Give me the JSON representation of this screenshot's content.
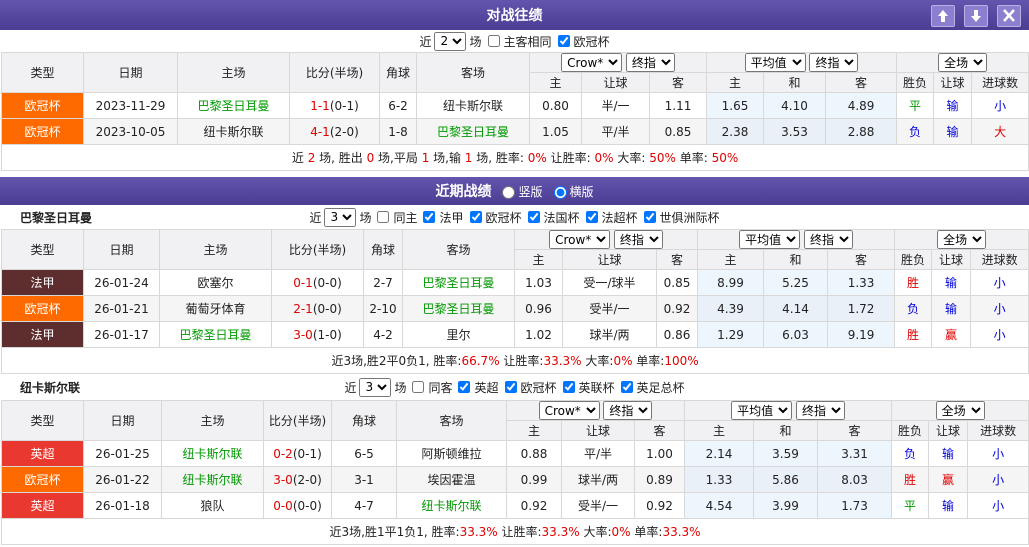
{
  "h2h": {
    "title": "对战往绩",
    "filter": {
      "prefix": "近",
      "count": "2",
      "suffix": "场",
      "options": [
        "主客相同",
        "欧冠杯"
      ]
    },
    "columns": [
      "类型",
      "日期",
      "主场",
      "比分(半场)",
      "角球",
      "客场"
    ],
    "selects": [
      "Crow*",
      "终指",
      "平均值",
      "终指",
      "全场"
    ],
    "subcolumns": [
      "主",
      "让球",
      "客",
      "主",
      "和",
      "客",
      "胜负",
      "让球",
      "进球数"
    ],
    "rows": [
      {
        "type": "欧冠杯",
        "date": "2023-11-29",
        "home": "巴黎圣日耳曼",
        "score": "1-1",
        "half": "(0-1)",
        "corner": "6-2",
        "away": "纽卡斯尔联",
        "odds": [
          "0.80",
          "半/一",
          "1.11"
        ],
        "euro": [
          "1.65",
          "4.10",
          "4.89"
        ],
        "result": "平",
        "handicap": "输",
        "goals": "小"
      },
      {
        "type": "欧冠杯",
        "date": "2023-10-05",
        "home": "纽卡斯尔联",
        "score": "4-1",
        "half": "(2-0)",
        "corner": "1-8",
        "away": "巴黎圣日耳曼",
        "odds": [
          "1.05",
          "平/半",
          "0.85"
        ],
        "euro": [
          "2.38",
          "3.53",
          "2.88"
        ],
        "result": "负",
        "handicap": "输",
        "goals": "大"
      }
    ],
    "summary": [
      "近 ",
      "2",
      " 场, 胜出 ",
      "0",
      " 场,平局 ",
      "1",
      " 场,输 ",
      "1",
      " 场, 胜率: ",
      "0%",
      " 让胜率: ",
      "0%",
      " 大率: ",
      "50%",
      " 单率: ",
      "50%"
    ]
  },
  "recent": {
    "title": "近期战绩",
    "views": [
      "竖版",
      "横版"
    ],
    "teams": [
      {
        "name": "巴黎圣日耳曼",
        "filter": {
          "prefix": "近",
          "count": "3",
          "suffix": "场",
          "options": [
            "同主",
            "法甲",
            "欧冠杯",
            "法国杯",
            "法超杯",
            "世俱洲际杯"
          ]
        },
        "columns": [
          "类型",
          "日期",
          "主场",
          "比分(半场)",
          "角球",
          "客场"
        ],
        "selects": [
          "Crow*",
          "终指",
          "平均值",
          "终指",
          "全场"
        ],
        "subcolumns": [
          "主",
          "让球",
          "客",
          "主",
          "和",
          "客",
          "胜负",
          "让球",
          "进球数"
        ],
        "rows": [
          {
            "type": "法甲",
            "date": "26-01-24",
            "home": "欧塞尔",
            "score": "0-1",
            "half": "(0-0)",
            "corner": "2-7",
            "away": "巴黎圣日耳曼",
            "odds": [
              "1.03",
              "受一/球半",
              "0.85"
            ],
            "euro": [
              "8.99",
              "5.25",
              "1.33"
            ],
            "result": "胜",
            "handicap": "输",
            "goals": "小"
          },
          {
            "type": "欧冠杯",
            "date": "26-01-21",
            "home": "葡萄牙体育",
            "score": "2-1",
            "half": "(0-0)",
            "corner": "2-10",
            "away": "巴黎圣日耳曼",
            "odds": [
              "0.96",
              "受半/一",
              "0.92"
            ],
            "euro": [
              "4.39",
              "4.14",
              "1.72"
            ],
            "result": "负",
            "handicap": "输",
            "goals": "小"
          },
          {
            "type": "法甲",
            "date": "26-01-17",
            "home": "巴黎圣日耳曼",
            "score": "3-0",
            "half": "(1-0)",
            "corner": "4-2",
            "away": "里尔",
            "odds": [
              "1.02",
              "球半/两",
              "0.86"
            ],
            "euro": [
              "1.29",
              "6.03",
              "9.19"
            ],
            "result": "胜",
            "handicap": "赢",
            "goals": "小"
          }
        ],
        "summary": [
          "近3场,胜2平0负1, 胜率:",
          "66.7%",
          " 让胜率:",
          "33.3%",
          " 大率:",
          "0%",
          " 单率:",
          "100%"
        ]
      },
      {
        "name": "纽卡斯尔联",
        "filter": {
          "prefix": "近",
          "count": "3",
          "suffix": "场",
          "options": [
            "同客",
            "英超",
            "欧冠杯",
            "英联杯",
            "英足总杯"
          ]
        },
        "columns": [
          "类型",
          "日期",
          "主场",
          "比分(半场)",
          "角球",
          "客场"
        ],
        "selects": [
          "Crow*",
          "终指",
          "平均值",
          "终指",
          "全场"
        ],
        "subcolumns": [
          "主",
          "让球",
          "客",
          "主",
          "和",
          "客",
          "胜负",
          "让球",
          "进球数"
        ],
        "rows": [
          {
            "type": "英超",
            "date": "26-01-25",
            "home": "纽卡斯尔联",
            "score": "0-2",
            "half": "(0-1)",
            "corner": "6-5",
            "away": "阿斯顿维拉",
            "odds": [
              "0.88",
              "平/半",
              "1.00"
            ],
            "euro": [
              "2.14",
              "3.59",
              "3.31"
            ],
            "result": "负",
            "handicap": "输",
            "goals": "小"
          },
          {
            "type": "欧冠杯",
            "date": "26-01-22",
            "home": "纽卡斯尔联",
            "score": "3-0",
            "half": "(2-0)",
            "corner": "3-1",
            "away": "埃因霍温",
            "odds": [
              "0.99",
              "球半/两",
              "0.89"
            ],
            "euro": [
              "1.33",
              "5.86",
              "8.03"
            ],
            "result": "胜",
            "handicap": "赢",
            "goals": "小"
          },
          {
            "type": "英超",
            "date": "26-01-18",
            "home": "狼队",
            "score": "0-0",
            "half": "(0-0)",
            "corner": "4-7",
            "away": "纽卡斯尔联",
            "odds": [
              "0.92",
              "受半/一",
              "0.92"
            ],
            "euro": [
              "4.54",
              "3.99",
              "1.73"
            ],
            "result": "平",
            "handicap": "输",
            "goals": "小"
          }
        ],
        "summary": [
          "近3场,胜1平1负1, 胜率:",
          "33.3%",
          " 让胜率:",
          "33.3%",
          " 大率:",
          "0%",
          " 单率:",
          "33.3%"
        ]
      }
    ]
  }
}
